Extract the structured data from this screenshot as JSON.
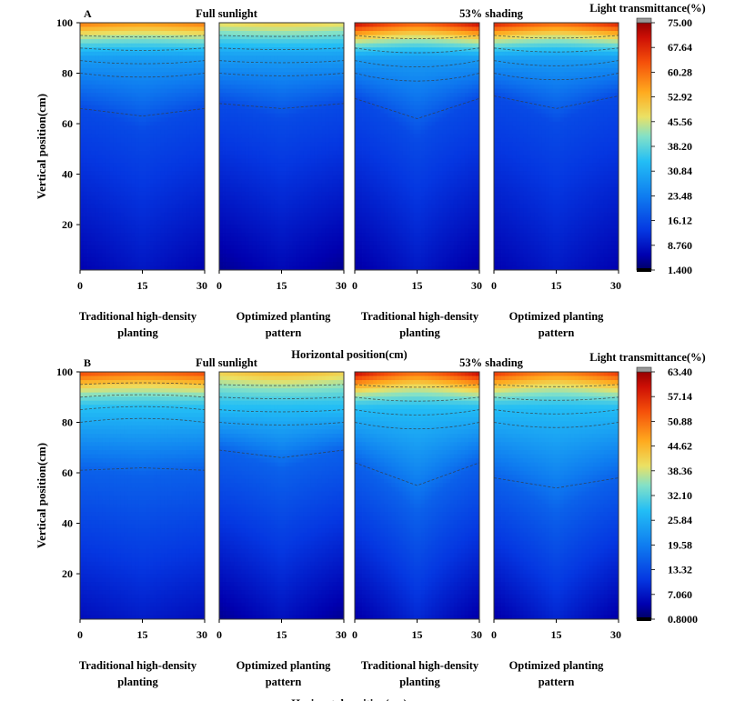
{
  "figure": {
    "x_axis_title": "Horizontal position(cm)",
    "y_axis_title": "Vertical position(cm)",
    "colorbar_title": "Light transmittance(%)"
  },
  "chart_data": [
    {
      "type": "heatmap",
      "panel_letter": "A",
      "x_tick_labels": [
        "0",
        "15",
        "30"
      ],
      "y_tick_labels": [
        "20",
        "40",
        "60",
        "80",
        "100"
      ],
      "xlim": [
        0,
        30
      ],
      "ylim": [
        2,
        100
      ],
      "colorbar_ticks": [
        "75.00",
        "67.64",
        "60.28",
        "52.92",
        "45.56",
        "38.20",
        "30.84",
        "23.48",
        "16.12",
        "8.760",
        "1.400"
      ],
      "colorbar_range": [
        1.4,
        75.0
      ],
      "groups": [
        "Full sunlight",
        "53% shading"
      ],
      "panels": [
        {
          "group": "Full sunlight",
          "label": [
            "Traditional high-density",
            "planting"
          ],
          "top_value": 60,
          "edge_drop": 3,
          "shape_80": 0.3,
          "contour_60_center": 63,
          "contour_60_side": 66,
          "bottom_value": 6,
          "v_depth": 1.0
        },
        {
          "group": "Full sunlight",
          "label": [
            "Optimized planting",
            "pattern"
          ],
          "top_value": 48,
          "edge_drop": -2,
          "shape_80": 0.2,
          "contour_60_center": 66,
          "contour_60_side": 68,
          "bottom_value": 4,
          "v_depth": 0.9
        },
        {
          "group": "53% shading",
          "label": [
            "Traditional high-density",
            "planting"
          ],
          "top_value": 73,
          "edge_drop": 10,
          "shape_80": 0.6,
          "contour_60_center": 62,
          "contour_60_side": 70,
          "bottom_value": 5,
          "v_depth": 1.3
        },
        {
          "group": "53% shading",
          "label": [
            "Optimized planting",
            "pattern"
          ],
          "top_value": 70,
          "edge_drop": 8,
          "shape_80": 0.5,
          "contour_60_center": 66,
          "contour_60_side": 71,
          "bottom_value": 6,
          "v_depth": 1.2
        }
      ]
    },
    {
      "type": "heatmap",
      "panel_letter": "B",
      "x_tick_labels": [
        "0",
        "15",
        "30"
      ],
      "y_tick_labels": [
        "20",
        "40",
        "60",
        "80",
        "100"
      ],
      "xlim": [
        0,
        30
      ],
      "ylim": [
        2,
        100
      ],
      "colorbar_ticks": [
        "63.40",
        "57.14",
        "50.88",
        "44.62",
        "38.36",
        "32.10",
        "25.84",
        "19.58",
        "13.32",
        "7.060",
        "0.8000"
      ],
      "colorbar_range": [
        0.8,
        63.4
      ],
      "groups": [
        "Full sunlight",
        "53% shading"
      ],
      "panels": [
        {
          "group": "Full sunlight",
          "label": [
            "Traditional high-density",
            "planting"
          ],
          "top_value": 55,
          "edge_drop": 3,
          "shape_80": -0.3,
          "contour_60_center": 62,
          "contour_60_side": 61,
          "bottom_value": 6,
          "v_depth": 0.6
        },
        {
          "group": "Full sunlight",
          "label": [
            "Optimized planting",
            "pattern"
          ],
          "top_value": 42,
          "edge_drop": -3,
          "shape_80": 0.2,
          "contour_60_center": 66,
          "contour_60_side": 69,
          "bottom_value": 3,
          "v_depth": 1.0
        },
        {
          "group": "53% shading",
          "label": [
            "Traditional high-density",
            "planting"
          ],
          "top_value": 62,
          "edge_drop": 10,
          "shape_80": 0.5,
          "contour_60_center": 55,
          "contour_60_side": 64,
          "bottom_value": 4,
          "v_depth": 1.3
        },
        {
          "group": "53% shading",
          "label": [
            "Optimized planting",
            "pattern"
          ],
          "top_value": 57,
          "edge_drop": 7,
          "shape_80": 0.4,
          "contour_60_center": 54,
          "contour_60_side": 58,
          "bottom_value": 4,
          "v_depth": 1.2
        }
      ]
    }
  ]
}
